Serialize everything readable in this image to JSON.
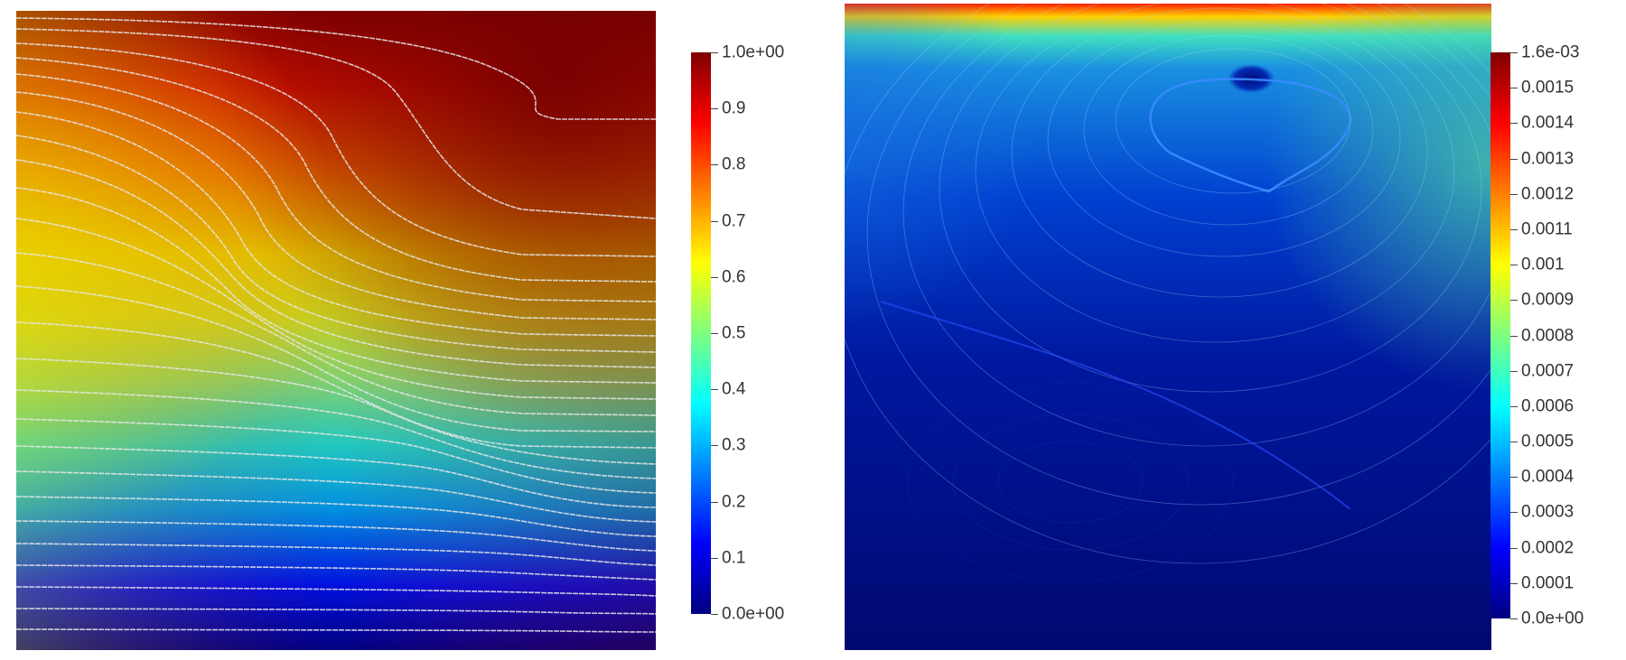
{
  "colormap": [
    "#00007f",
    "#0000ff",
    "#007fff",
    "#00ffff",
    "#7fff7f",
    "#ffff00",
    "#ff7f00",
    "#ff0000",
    "#7f0000"
  ],
  "left_colorbar": {
    "min": 0.0,
    "max": 1.0,
    "ticks": [
      {
        "value": 0.0,
        "label": "0.0e+00"
      },
      {
        "value": 0.1,
        "label": "0.1"
      },
      {
        "value": 0.2,
        "label": "0.2"
      },
      {
        "value": 0.3,
        "label": "0.3"
      },
      {
        "value": 0.4,
        "label": "0.4"
      },
      {
        "value": 0.5,
        "label": "0.5"
      },
      {
        "value": 0.6,
        "label": "0.6"
      },
      {
        "value": 0.7,
        "label": "0.7"
      },
      {
        "value": 0.8,
        "label": "0.8"
      },
      {
        "value": 0.9,
        "label": "0.9"
      },
      {
        "value": 1.0,
        "label": "1.0e+00"
      }
    ]
  },
  "right_colorbar": {
    "min": 0.0,
    "max": 0.0016,
    "ticks": [
      {
        "value": 0.0,
        "label": "0.0e+00"
      },
      {
        "value": 0.0001,
        "label": "0.0001"
      },
      {
        "value": 0.0002,
        "label": "0.0002"
      },
      {
        "value": 0.0003,
        "label": "0.0003"
      },
      {
        "value": 0.0004,
        "label": "0.0004"
      },
      {
        "value": 0.0005,
        "label": "0.0005"
      },
      {
        "value": 0.0006,
        "label": "0.0006"
      },
      {
        "value": 0.0007,
        "label": "0.0007"
      },
      {
        "value": 0.0008,
        "label": "0.0008"
      },
      {
        "value": 0.0009,
        "label": "0.0009"
      },
      {
        "value": 0.001,
        "label": "0.001"
      },
      {
        "value": 0.0011,
        "label": "0.0011"
      },
      {
        "value": 0.0012,
        "label": "0.0012"
      },
      {
        "value": 0.0013,
        "label": "0.0013"
      },
      {
        "value": 0.0014,
        "label": "0.0014"
      },
      {
        "value": 0.0015,
        "label": "0.0015"
      },
      {
        "value": 0.0016,
        "label": "1.6e-03"
      }
    ]
  }
}
